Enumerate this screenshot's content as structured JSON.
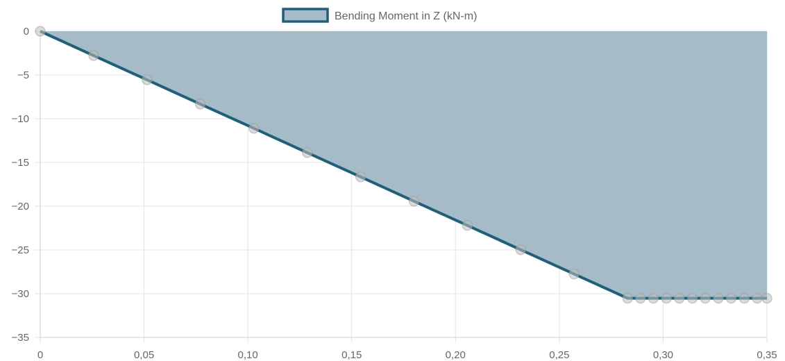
{
  "chart_data": {
    "type": "area",
    "title": "",
    "xlabel": "",
    "ylabel": "",
    "xlim": [
      0,
      0.35
    ],
    "ylim": [
      -35,
      0
    ],
    "grid": true,
    "legend_position": "top-center",
    "x_ticks": [
      0,
      0.05,
      0.1,
      0.15,
      0.2,
      0.25,
      0.3,
      0.35
    ],
    "x_tick_labels": [
      "0",
      "0,05",
      "0,10",
      "0,15",
      "0,20",
      "0,25",
      "0,30",
      "0,35"
    ],
    "y_ticks": [
      0,
      -5,
      -10,
      -15,
      -20,
      -25,
      -30,
      -35
    ],
    "y_tick_labels": [
      "0",
      "−5",
      "−10",
      "−15",
      "−20",
      "−25",
      "−30",
      "−35"
    ],
    "series": [
      {
        "name": "Bending Moment in Z (kN-m)",
        "line_color": "#1f5f78",
        "fill_color": "#a5bcc8",
        "x": [
          0,
          0.0257,
          0.0514,
          0.0771,
          0.1029,
          0.1286,
          0.1543,
          0.18,
          0.2057,
          0.2314,
          0.2571,
          0.2829,
          0.2891,
          0.2953,
          0.3016,
          0.3078,
          0.3141,
          0.3203,
          0.3266,
          0.3328,
          0.3391,
          0.3453,
          0.35
        ],
        "y": [
          0,
          -2.78,
          -5.55,
          -8.33,
          -11.1,
          -13.88,
          -16.65,
          -19.43,
          -22.2,
          -24.98,
          -27.75,
          -30.53,
          -30.53,
          -30.53,
          -30.53,
          -30.53,
          -30.53,
          -30.53,
          -30.53,
          -30.53,
          -30.53,
          -30.53,
          -30.53
        ]
      }
    ]
  }
}
